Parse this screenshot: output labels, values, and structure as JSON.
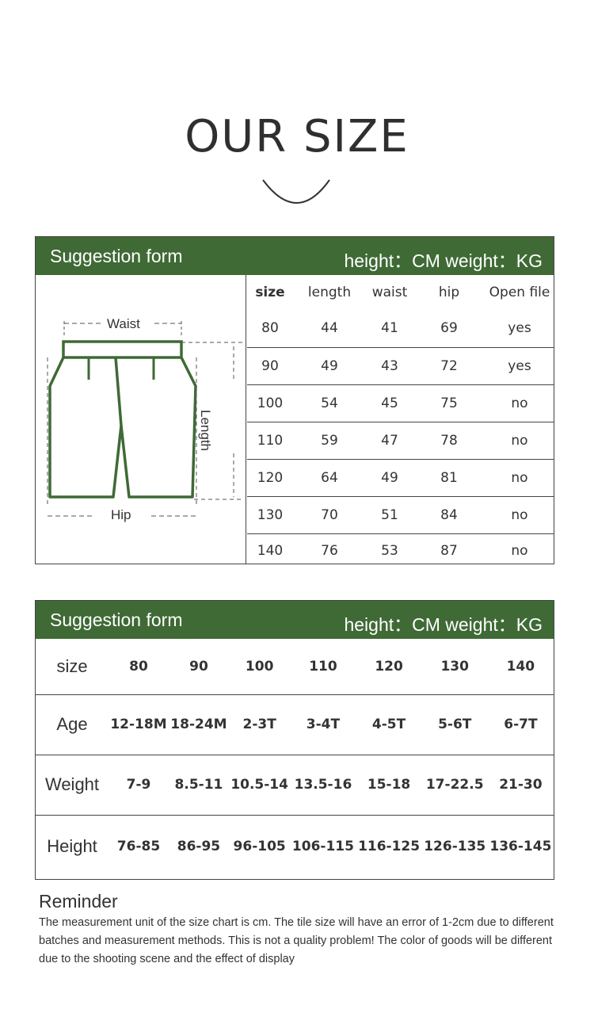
{
  "title": "OUR SIZE",
  "colors": {
    "header_green": "#3f6a35",
    "outline_green": "#3f6a35"
  },
  "table1": {
    "header_left": "Suggestion form",
    "header_right": "height：CM  weight：KG",
    "diagram": {
      "waist_label": "Waist",
      "hip_label": "Hip",
      "length_label": "Length"
    },
    "columns": [
      "size",
      "length",
      "waist",
      "hip",
      "Open file"
    ],
    "rows": [
      [
        "80",
        "44",
        "41",
        "69",
        "yes"
      ],
      [
        "90",
        "49",
        "43",
        "72",
        "yes"
      ],
      [
        "100",
        "54",
        "45",
        "75",
        "no"
      ],
      [
        "110",
        "59",
        "47",
        "78",
        "no"
      ],
      [
        "120",
        "64",
        "49",
        "81",
        "no"
      ],
      [
        "130",
        "70",
        "51",
        "84",
        "no"
      ],
      [
        "140",
        "76",
        "53",
        "87",
        "no"
      ]
    ]
  },
  "table2": {
    "header_left": "Suggestion form",
    "header_right": "height：CM  weight：KG",
    "rows": [
      {
        "label": "size",
        "values": [
          "80",
          "90",
          "100",
          "110",
          "120",
          "130",
          "140"
        ]
      },
      {
        "label": "Age",
        "values": [
          "12-18M",
          "18-24M",
          "2-3T",
          "3-4T",
          "4-5T",
          "5-6T",
          "6-7T"
        ]
      },
      {
        "label": "Weight",
        "values": [
          "7-9",
          "8.5-11",
          "10.5-14",
          "13.5-16",
          "15-18",
          "17-22.5",
          "21-30"
        ]
      },
      {
        "label": "Height",
        "values": [
          "76-85",
          "86-95",
          "96-105",
          "106-115",
          "116-125",
          "126-135",
          "136-145"
        ]
      }
    ]
  },
  "reminder": {
    "title": "Reminder",
    "text": "The measurement unit of the size chart is cm. The tile size will have an error of 1-2cm due to different batches and measurement methods. This is not a quality problem! The color of goods will be different due to the shooting scene and the effect of display"
  }
}
